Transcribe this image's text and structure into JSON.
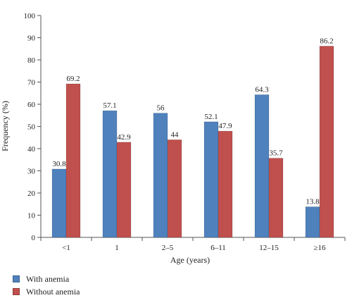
{
  "chart_data": {
    "type": "bar",
    "categories": [
      "<1",
      "1",
      "2–5",
      "6–11",
      "12–15",
      "≥16"
    ],
    "series": [
      {
        "name": "With anemia",
        "values": [
          30.8,
          57.1,
          56,
          52.1,
          64.3,
          13.8
        ],
        "color": "#4f81bd"
      },
      {
        "name": "Without anemia",
        "values": [
          69.2,
          42.9,
          44,
          47.9,
          35.7,
          86.2
        ],
        "color": "#c0504d"
      }
    ],
    "data_labels": [
      [
        "30.8",
        "57.1",
        "56",
        "52.1",
        "64.3",
        "13.8"
      ],
      [
        "69.2",
        "42.9",
        "44",
        "47.9",
        "35.7",
        "86.2"
      ]
    ],
    "xlabel": "Age (years)",
    "ylabel": "Frequency (%)",
    "ylim": [
      0,
      100
    ],
    "yticks": [
      0,
      10,
      20,
      30,
      40,
      50,
      60,
      70,
      80,
      90,
      100
    ],
    "grid": false,
    "legend_position": "bottom-left"
  }
}
